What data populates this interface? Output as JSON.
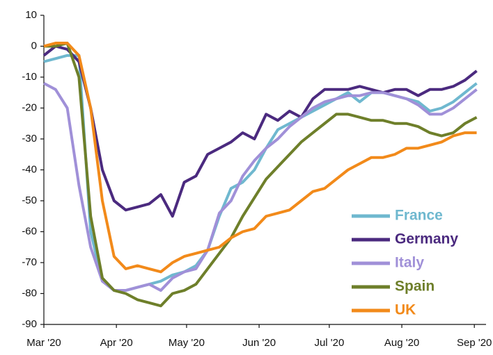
{
  "chart_data": {
    "type": "line",
    "x": [
      0,
      5,
      10,
      15,
      20,
      25,
      30,
      35,
      40,
      45,
      50,
      55,
      60,
      65,
      70,
      75,
      80,
      85,
      90,
      95,
      100,
      105,
      110,
      115,
      120,
      125,
      130,
      135,
      140,
      145,
      150,
      155,
      160,
      165,
      170,
      175,
      180,
      185
    ],
    "series": [
      {
        "name": "France",
        "color": "#6fb8cf",
        "values": [
          -5,
          -4,
          -3,
          -3,
          -60,
          -76,
          -79,
          -79,
          -78,
          -77,
          -76,
          -74,
          -73,
          -71,
          -66,
          -55,
          -46,
          -44,
          -40,
          -33,
          -27,
          -25,
          -23,
          -21,
          -19,
          -17,
          -15,
          -18,
          -15,
          -15,
          -16,
          -17,
          -18,
          -21,
          -20,
          -18,
          -15,
          -12
        ]
      },
      {
        "name": "Germany",
        "color": "#4b2a7f",
        "values": [
          -3,
          0,
          -1,
          -5,
          -20,
          -40,
          -50,
          -53,
          -52,
          -51,
          -48,
          -55,
          -44,
          -42,
          -35,
          -33,
          -31,
          -28,
          -30,
          -22,
          -24,
          -21,
          -23,
          -17,
          -14,
          -14,
          -14,
          -13,
          -14,
          -15,
          -14,
          -14,
          -16,
          -14,
          -14,
          -13,
          -11,
          -8
        ]
      },
      {
        "name": "Italy",
        "color": "#a090d8",
        "values": [
          -12,
          -14,
          -20,
          -45,
          -65,
          -76,
          -79,
          -79,
          -78,
          -77,
          -79,
          -75,
          -73,
          -72,
          -66,
          -54,
          -50,
          -42,
          -37,
          -33,
          -30,
          -26,
          -23,
          -20,
          -18,
          -17,
          -16,
          -16,
          -15,
          -15,
          -16,
          -17,
          -19,
          -22,
          -22,
          -20,
          -17,
          -14
        ]
      },
      {
        "name": "Spain",
        "color": "#6e7f2a",
        "values": [
          0,
          0,
          1,
          -10,
          -55,
          -75,
          -79,
          -80,
          -82,
          -83,
          -84,
          -80,
          -79,
          -77,
          -72,
          -67,
          -62,
          -55,
          -49,
          -43,
          -39,
          -35,
          -31,
          -28,
          -25,
          -22,
          -22,
          -23,
          -24,
          -24,
          -25,
          -25,
          -26,
          -28,
          -29,
          -28,
          -25,
          -23
        ]
      },
      {
        "name": "UK",
        "color": "#f28a1a",
        "values": [
          0,
          1,
          1,
          -3,
          -20,
          -50,
          -68,
          -72,
          -71,
          -72,
          -73,
          -70,
          -68,
          -67,
          -66,
          -65,
          -62,
          -60,
          -59,
          -55,
          -54,
          -53,
          -50,
          -47,
          -46,
          -43,
          -40,
          -38,
          -36,
          -36,
          -35,
          -33,
          -33,
          -32,
          -31,
          -29,
          -28,
          -28
        ]
      }
    ],
    "xlim": [
      0,
      189
    ],
    "xticks": [
      {
        "value": 0,
        "label": "Mar '20"
      },
      {
        "value": 31,
        "label": "Apr '20"
      },
      {
        "value": 61,
        "label": "May '20"
      },
      {
        "value": 92,
        "label": "Jun '20"
      },
      {
        "value": 122,
        "label": "Jul '20"
      },
      {
        "value": 153,
        "label": "Aug '20"
      },
      {
        "value": 184,
        "label": "Sep '20"
      }
    ],
    "ylim": [
      -90,
      10
    ],
    "yticks": [
      -90,
      -80,
      -70,
      -60,
      -50,
      -40,
      -30,
      -20,
      -10,
      0,
      10
    ],
    "grid": false,
    "legend": "lower-right"
  }
}
